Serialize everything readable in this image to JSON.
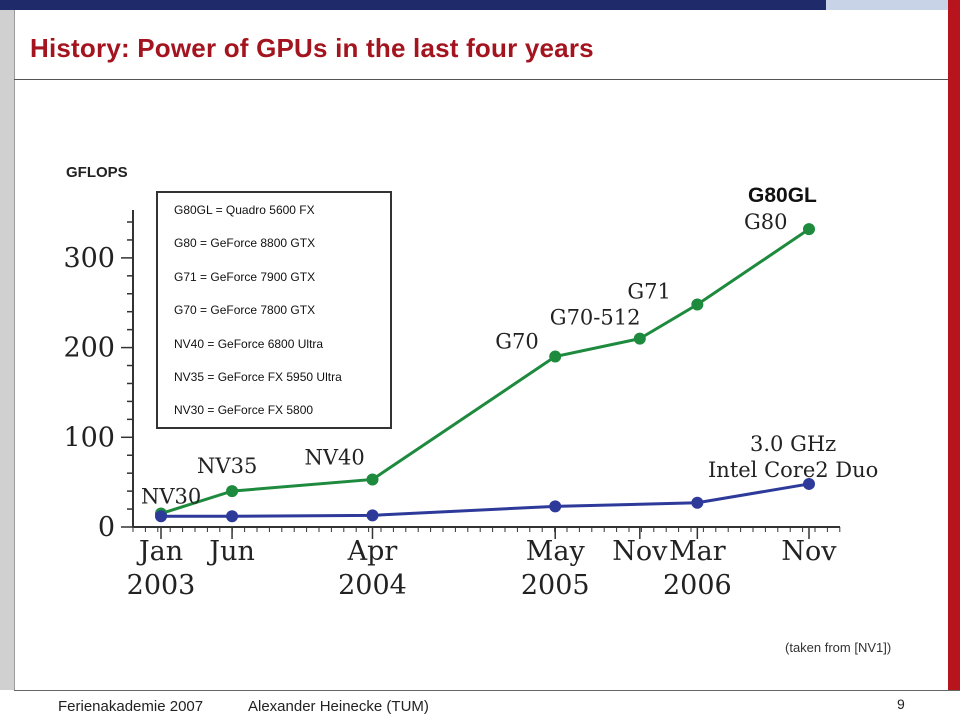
{
  "slide": {
    "title": "History: Power of GPUs in the last four years",
    "source_note": "(taken from [NV1])",
    "footer_left": "Ferienakademie 2007",
    "footer_author": "Alexander Heinecke (TUM)",
    "page_number": "9"
  },
  "colors": {
    "title_red": "#a3141f",
    "top_bar_navy": "#1f2a6b",
    "right_bar_red": "#b8141d",
    "gpu_series": "#1e8a3e",
    "cpu_series": "#2d3a9a"
  },
  "chart_data": {
    "type": "line",
    "ylabel": "GFLOPS",
    "ylim": [
      0,
      340
    ],
    "y_ticks": [
      0,
      100,
      200,
      300
    ],
    "x_ticks": [
      {
        "month": "Jan",
        "year": "2003",
        "t": 2003.0
      },
      {
        "month": "Jun",
        "year": "",
        "t": 2003.42
      },
      {
        "month": "Apr",
        "year": "2004",
        "t": 2004.25
      },
      {
        "month": "May",
        "year": "2005",
        "t": 2005.33
      },
      {
        "month": "Nov",
        "year": "",
        "t": 2005.83
      },
      {
        "month": "Mar",
        "year": "2006",
        "t": 2006.17
      },
      {
        "month": "Nov",
        "year": "",
        "t": 2006.83
      }
    ],
    "xlim": [
      2002.85,
      2007.1
    ],
    "series": [
      {
        "key": "gpu",
        "color": "#1e8a3e",
        "points": [
          {
            "t": 2003.0,
            "y": 15,
            "label": "NV30"
          },
          {
            "t": 2003.42,
            "y": 40,
            "label": "NV35"
          },
          {
            "t": 2004.25,
            "y": 53,
            "label": "NV40"
          },
          {
            "t": 2005.33,
            "y": 190,
            "label": "G70"
          },
          {
            "t": 2005.83,
            "y": 210,
            "label": "G70-512"
          },
          {
            "t": 2006.17,
            "y": 248,
            "label": "G71"
          },
          {
            "t": 2006.83,
            "y": 332,
            "label": "G80"
          }
        ],
        "top_label": "G80GL"
      },
      {
        "key": "cpu",
        "color": "#2d3a9a",
        "points": [
          {
            "t": 2003.0,
            "y": 12
          },
          {
            "t": 2003.42,
            "y": 12
          },
          {
            "t": 2004.25,
            "y": 13
          },
          {
            "t": 2005.33,
            "y": 23
          },
          {
            "t": 2006.17,
            "y": 27
          },
          {
            "t": 2006.83,
            "y": 48
          }
        ],
        "end_label_line1": "3.0 GHz",
        "end_label_line2": "Intel Core2 Duo"
      }
    ],
    "legend_entries": [
      "G80GL = Quadro 5600 FX",
      "G80 = GeForce 8800 GTX",
      "G71 = GeForce 7900 GTX",
      "G70 = GeForce 7800 GTX",
      "NV40 = GeForce 6800 Ultra",
      "NV35 = GeForce FX 5950 Ultra",
      "NV30 = GeForce FX 5800"
    ]
  }
}
